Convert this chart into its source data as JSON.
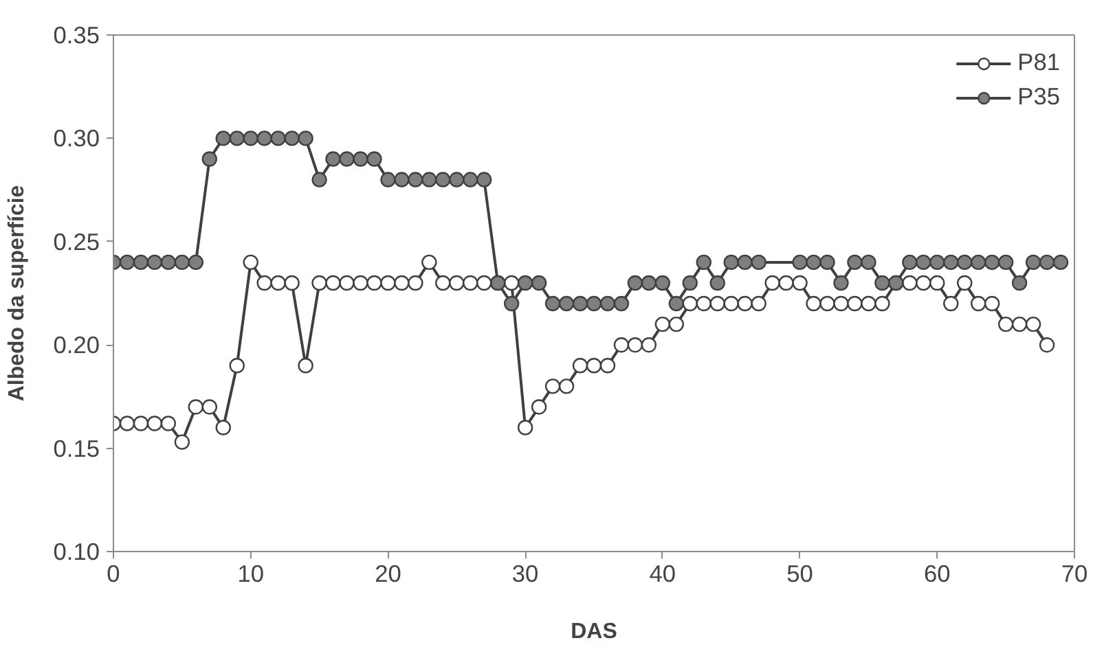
{
  "chart_data": {
    "type": "line",
    "xlabel": "DAS",
    "ylabel": "Albedo da superfície",
    "xlim": [
      0,
      70
    ],
    "xticks": [
      0,
      10,
      20,
      30,
      40,
      50,
      60,
      70
    ],
    "ylim": [
      0.1,
      0.35
    ],
    "yticks": [
      {
        "value": 0.1,
        "label": "0.10"
      },
      {
        "value": 0.15,
        "label": "0.15"
      },
      {
        "value": 0.2,
        "label": "0.20"
      },
      {
        "value": 0.25,
        "label": "0.25"
      },
      {
        "value": 0.3,
        "label": "0.30"
      },
      {
        "value": 0.35,
        "label": "0.35"
      }
    ],
    "grid": false,
    "legend": "top right",
    "marker": "circle",
    "line_style": "solid",
    "series": [
      {
        "name": "P81",
        "color": "#ffffff",
        "x": [
          0,
          1,
          2,
          3,
          4,
          5,
          6,
          7,
          8,
          9,
          10,
          11,
          12,
          13,
          14,
          15,
          16,
          17,
          18,
          19,
          20,
          21,
          22,
          23,
          24,
          25,
          26,
          27,
          28,
          29,
          30,
          31,
          32,
          33,
          34,
          35,
          36,
          37,
          38,
          39,
          40,
          41,
          42,
          43,
          44,
          45,
          46,
          47,
          48,
          49,
          50,
          51,
          52,
          53,
          54,
          55,
          56,
          57,
          58,
          59,
          60,
          61,
          62,
          63,
          64,
          65,
          66,
          67,
          68
        ],
        "values": [
          0.162,
          0.162,
          0.162,
          0.162,
          0.162,
          0.153,
          0.17,
          0.17,
          0.16,
          0.19,
          0.24,
          0.23,
          0.23,
          0.23,
          0.19,
          0.23,
          0.23,
          0.23,
          0.23,
          0.23,
          0.23,
          0.23,
          0.23,
          0.24,
          0.23,
          0.23,
          0.23,
          0.23,
          0.23,
          0.23,
          0.16,
          0.17,
          0.18,
          0.18,
          0.19,
          0.19,
          0.19,
          0.2,
          0.2,
          0.2,
          0.21,
          0.21,
          0.22,
          0.22,
          0.22,
          0.22,
          0.22,
          0.22,
          0.23,
          0.23,
          0.23,
          0.22,
          0.22,
          0.22,
          0.22,
          0.22,
          0.22,
          0.23,
          0.23,
          0.23,
          0.23,
          0.22,
          0.23,
          0.22,
          0.22,
          0.21,
          0.21,
          0.21,
          0.2
        ]
      },
      {
        "name": "P35",
        "color": "#7f7f7f",
        "x": [
          0,
          1,
          2,
          3,
          4,
          5,
          6,
          7,
          8,
          9,
          10,
          11,
          12,
          13,
          14,
          15,
          16,
          17,
          18,
          19,
          20,
          21,
          22,
          23,
          24,
          25,
          26,
          27,
          28,
          29,
          30,
          31,
          32,
          33,
          34,
          35,
          36,
          37,
          38,
          39,
          40,
          41,
          42,
          43,
          44,
          45,
          46,
          47,
          50,
          51,
          52,
          53,
          54,
          55,
          56,
          57,
          58,
          59,
          60,
          61,
          62,
          63,
          64,
          65,
          66,
          67,
          68,
          69
        ],
        "values": [
          0.24,
          0.24,
          0.24,
          0.24,
          0.24,
          0.24,
          0.24,
          0.29,
          0.3,
          0.3,
          0.3,
          0.3,
          0.3,
          0.3,
          0.3,
          0.28,
          0.29,
          0.29,
          0.29,
          0.29,
          0.28,
          0.28,
          0.28,
          0.28,
          0.28,
          0.28,
          0.28,
          0.28,
          0.23,
          0.22,
          0.23,
          0.23,
          0.22,
          0.22,
          0.22,
          0.22,
          0.22,
          0.22,
          0.23,
          0.23,
          0.23,
          0.22,
          0.23,
          0.24,
          0.23,
          0.24,
          0.24,
          0.24,
          0.24,
          0.24,
          0.24,
          0.23,
          0.24,
          0.24,
          0.23,
          0.23,
          0.24,
          0.24,
          0.24,
          0.24,
          0.24,
          0.24,
          0.24,
          0.24,
          0.23,
          0.24,
          0.24,
          0.24
        ]
      }
    ]
  }
}
